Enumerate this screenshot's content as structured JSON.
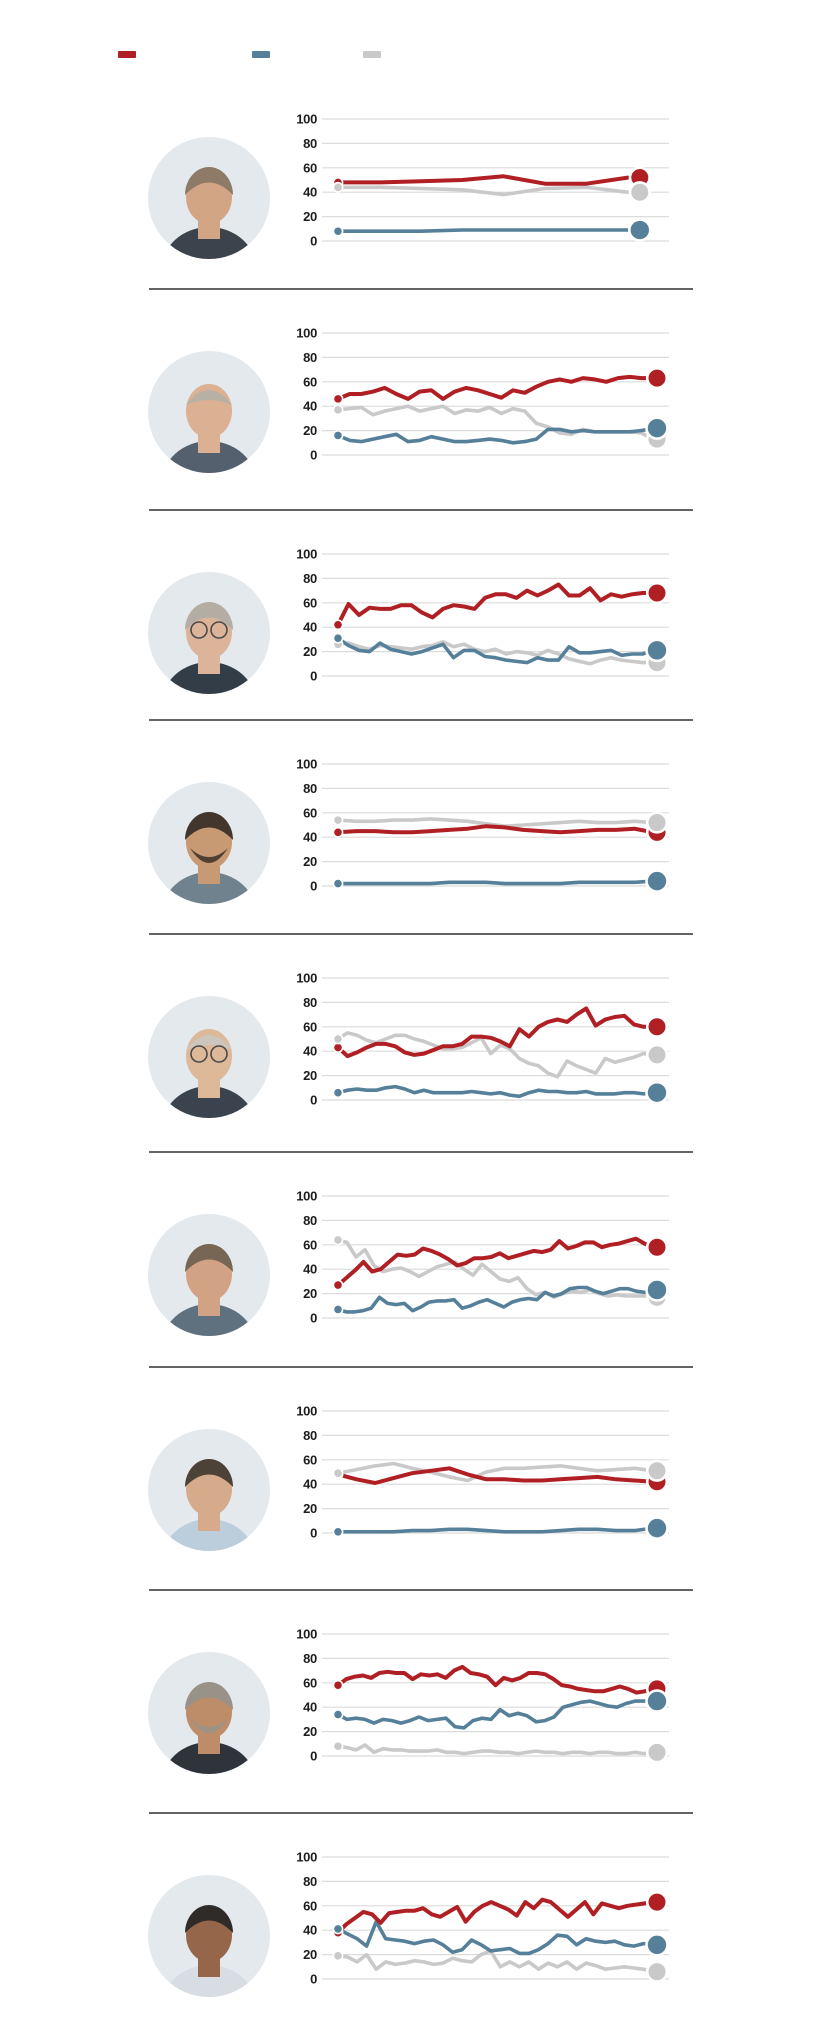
{
  "legend": {
    "items": [
      {
        "name": "red-series",
        "color": "#b01f23"
      },
      {
        "name": "blue-series",
        "color": "#56809a"
      },
      {
        "name": "gray-series",
        "color": "#c9c9c9"
      }
    ]
  },
  "colors": {
    "red": "#b01f23",
    "blue": "#56809a",
    "gray": "#c9c9c9",
    "grid": "#dcdcdc",
    "divider": "#646464",
    "tick_text": "#1d1d1d",
    "avatar_bg": "#e4e9ee"
  },
  "axis": {
    "yticks": [
      100,
      80,
      60,
      40,
      20,
      0
    ],
    "ylim": [
      0,
      100
    ]
  },
  "chart_data": [
    {
      "type": "line",
      "ylim": [
        0,
        100
      ],
      "yticks": [
        100,
        80,
        60,
        40,
        20,
        0
      ],
      "x_end_frac": 0.92,
      "series": [
        {
          "name": "red",
          "values": [
            48,
            48,
            49,
            50,
            53,
            47,
            47,
            52
          ]
        },
        {
          "name": "gray",
          "values": [
            44,
            44,
            43,
            42,
            38,
            43,
            44,
            40
          ]
        },
        {
          "name": "blue",
          "values": [
            8,
            8,
            8,
            9,
            9,
            9,
            9,
            9
          ]
        }
      ]
    },
    {
      "type": "line",
      "ylim": [
        0,
        100
      ],
      "yticks": [
        100,
        80,
        60,
        40,
        20,
        0
      ],
      "x_end_frac": 1,
      "series": [
        {
          "name": "red",
          "values": [
            46,
            50,
            50,
            52,
            55,
            50,
            46,
            52,
            53,
            46,
            52,
            55,
            53,
            50,
            47,
            53,
            51,
            56,
            60,
            62,
            60,
            63,
            62,
            60,
            63,
            64,
            63,
            63
          ]
        },
        {
          "name": "gray",
          "values": [
            37,
            38,
            39,
            33,
            36,
            38,
            40,
            36,
            38,
            40,
            34,
            37,
            36,
            39,
            34,
            38,
            36,
            26,
            23,
            18,
            17,
            21,
            19,
            19,
            19,
            19,
            18,
            13
          ]
        },
        {
          "name": "blue",
          "values": [
            16,
            12,
            11,
            13,
            15,
            17,
            11,
            12,
            15,
            13,
            11,
            11,
            12,
            13,
            12,
            10,
            11,
            13,
            21,
            21,
            19,
            20,
            19,
            19,
            19,
            19,
            20,
            22
          ]
        }
      ]
    },
    {
      "type": "line",
      "ylim": [
        0,
        100
      ],
      "yticks": [
        100,
        80,
        60,
        40,
        20,
        0
      ],
      "x_end_frac": 1,
      "series": [
        {
          "name": "red",
          "values": [
            42,
            59,
            50,
            56,
            55,
            55,
            58,
            58,
            52,
            48,
            55,
            58,
            57,
            55,
            64,
            67,
            67,
            64,
            70,
            66,
            70,
            75,
            66,
            66,
            72,
            62,
            67,
            65,
            67,
            68,
            68
          ]
        },
        {
          "name": "gray",
          "values": [
            26,
            27,
            24,
            22,
            25,
            24,
            23,
            22,
            24,
            25,
            28,
            24,
            26,
            22,
            20,
            22,
            18,
            20,
            19,
            17,
            21,
            18,
            14,
            12,
            10,
            13,
            15,
            13,
            12,
            11,
            11
          ]
        },
        {
          "name": "blue",
          "values": [
            31,
            25,
            21,
            20,
            27,
            22,
            20,
            18,
            20,
            23,
            26,
            15,
            21,
            21,
            16,
            15,
            13,
            12,
            11,
            15,
            13,
            13,
            24,
            19,
            19,
            20,
            21,
            17,
            18,
            18,
            21
          ]
        }
      ]
    },
    {
      "type": "line",
      "ylim": [
        0,
        100
      ],
      "yticks": [
        100,
        80,
        60,
        40,
        20,
        0
      ],
      "x_end_frac": 1,
      "series": [
        {
          "name": "red",
          "values": [
            44,
            45,
            45,
            44,
            44,
            45,
            46,
            47,
            49,
            48,
            46,
            45,
            44,
            45,
            46,
            46,
            47,
            44
          ]
        },
        {
          "name": "gray",
          "values": [
            54,
            53,
            53,
            54,
            54,
            55,
            54,
            53,
            51,
            49,
            50,
            51,
            52,
            53,
            52,
            52,
            53,
            52
          ]
        },
        {
          "name": "blue",
          "values": [
            2,
            2,
            2,
            2,
            2,
            2,
            3,
            3,
            3,
            2,
            2,
            2,
            2,
            3,
            3,
            3,
            3,
            4
          ]
        }
      ]
    },
    {
      "type": "line",
      "ylim": [
        0,
        100
      ],
      "yticks": [
        100,
        80,
        60,
        40,
        20,
        0
      ],
      "x_end_frac": 1,
      "series": [
        {
          "name": "red",
          "values": [
            43,
            36,
            39,
            43,
            46,
            46,
            44,
            39,
            37,
            38,
            41,
            44,
            44,
            46,
            52,
            52,
            51,
            48,
            44,
            58,
            52,
            60,
            64,
            66,
            64,
            70,
            75,
            61,
            66,
            68,
            69,
            62,
            60,
            60
          ]
        },
        {
          "name": "gray",
          "values": [
            50,
            55,
            53,
            49,
            47,
            50,
            53,
            53,
            50,
            48,
            45,
            42,
            42,
            43,
            47,
            51,
            38,
            45,
            42,
            34,
            30,
            28,
            22,
            19,
            32,
            28,
            25,
            22,
            34,
            31,
            33,
            35,
            38,
            37
          ]
        },
        {
          "name": "blue",
          "values": [
            6,
            8,
            9,
            8,
            8,
            10,
            11,
            9,
            6,
            8,
            6,
            6,
            6,
            6,
            7,
            6,
            5,
            6,
            4,
            3,
            6,
            8,
            7,
            7,
            6,
            6,
            7,
            5,
            5,
            5,
            6,
            6,
            5,
            6
          ]
        }
      ]
    },
    {
      "type": "line",
      "ylim": [
        0,
        100
      ],
      "yticks": [
        100,
        80,
        60,
        40,
        20,
        0
      ],
      "x_end_frac": 1,
      "series": [
        {
          "name": "red",
          "values": [
            27,
            33,
            39,
            46,
            38,
            40,
            46,
            52,
            51,
            52,
            57,
            55,
            52,
            48,
            43,
            45,
            49,
            49,
            50,
            53,
            49,
            51,
            53,
            55,
            54,
            56,
            63,
            57,
            59,
            62,
            62,
            58,
            60,
            61,
            63,
            65,
            61,
            58
          ]
        },
        {
          "name": "gray",
          "values": [
            64,
            62,
            50,
            56,
            43,
            38,
            40,
            41,
            38,
            34,
            38,
            42,
            44,
            46,
            40,
            35,
            44,
            38,
            32,
            30,
            33,
            24,
            19,
            21,
            17,
            20,
            22,
            21,
            23,
            20,
            18,
            19,
            18,
            18,
            18,
            17
          ]
        },
        {
          "name": "blue",
          "values": [
            7,
            5,
            5,
            6,
            8,
            17,
            12,
            11,
            12,
            6,
            9,
            13,
            14,
            14,
            15,
            8,
            10,
            13,
            15,
            12,
            9,
            13,
            15,
            16,
            15,
            21,
            18,
            20,
            24,
            25,
            25,
            22,
            20,
            22,
            24,
            24,
            22,
            21,
            23
          ]
        }
      ]
    },
    {
      "type": "line",
      "ylim": [
        0,
        100
      ],
      "yticks": [
        100,
        80,
        60,
        40,
        20,
        0
      ],
      "x_end_frac": 1,
      "series": [
        {
          "name": "red",
          "values": [
            48,
            44,
            41,
            45,
            49,
            51,
            53,
            48,
            44,
            44,
            43,
            43,
            44,
            45,
            46,
            44,
            43,
            42
          ]
        },
        {
          "name": "gray",
          "values": [
            49,
            52,
            55,
            57,
            53,
            50,
            46,
            43,
            50,
            53,
            53,
            54,
            55,
            53,
            51,
            52,
            53,
            51
          ]
        },
        {
          "name": "blue",
          "values": [
            1,
            1,
            1,
            1,
            2,
            2,
            3,
            3,
            2,
            1,
            1,
            1,
            2,
            3,
            3,
            2,
            2,
            4
          ]
        }
      ]
    },
    {
      "type": "line",
      "ylim": [
        0,
        100
      ],
      "yticks": [
        100,
        80,
        60,
        40,
        20,
        0
      ],
      "x_end_frac": 1,
      "series": [
        {
          "name": "red",
          "values": [
            58,
            63,
            65,
            66,
            64,
            68,
            69,
            68,
            68,
            63,
            67,
            66,
            67,
            64,
            70,
            73,
            68,
            67,
            65,
            58,
            64,
            62,
            64,
            68,
            68,
            67,
            63,
            58,
            57,
            55,
            54,
            53,
            53,
            55,
            57,
            55,
            52,
            53,
            55
          ]
        },
        {
          "name": "gray",
          "values": [
            8,
            7,
            5,
            9,
            3,
            6,
            5,
            5,
            4,
            4,
            4,
            5,
            3,
            3,
            2,
            3,
            4,
            4,
            3,
            3,
            2,
            3,
            4,
            3,
            3,
            2,
            3,
            3,
            2,
            3,
            3,
            2,
            2,
            3,
            2,
            3
          ]
        },
        {
          "name": "blue",
          "values": [
            34,
            30,
            31,
            30,
            27,
            30,
            29,
            27,
            29,
            32,
            29,
            30,
            31,
            24,
            23,
            29,
            31,
            30,
            38,
            33,
            35,
            33,
            28,
            29,
            32,
            40,
            42,
            44,
            45,
            43,
            41,
            40,
            43,
            45,
            45,
            45
          ]
        }
      ]
    },
    {
      "type": "line",
      "ylim": [
        0,
        100
      ],
      "yticks": [
        100,
        80,
        60,
        40,
        20,
        0
      ],
      "x_end_frac": 1,
      "series": [
        {
          "name": "red",
          "values": [
            38,
            45,
            50,
            55,
            53,
            46,
            54,
            55,
            56,
            56,
            58,
            53,
            51,
            55,
            59,
            47,
            55,
            60,
            63,
            60,
            57,
            52,
            63,
            58,
            65,
            63,
            57,
            51,
            57,
            63,
            53,
            62,
            60,
            58,
            60,
            61,
            62,
            63
          ]
        },
        {
          "name": "gray",
          "values": [
            19,
            18,
            14,
            20,
            8,
            14,
            12,
            13,
            15,
            14,
            12,
            13,
            17,
            15,
            14,
            20,
            23,
            10,
            14,
            10,
            14,
            8,
            13,
            10,
            14,
            8,
            13,
            11,
            8,
            9,
            10,
            9,
            8,
            6
          ]
        },
        {
          "name": "blue",
          "values": [
            41,
            37,
            33,
            27,
            47,
            33,
            32,
            31,
            29,
            31,
            32,
            28,
            22,
            24,
            32,
            28,
            23,
            24,
            25,
            21,
            21,
            24,
            29,
            36,
            35,
            28,
            33,
            31,
            30,
            31,
            28,
            27,
            29,
            28
          ]
        }
      ]
    }
  ],
  "rows": [
    {
      "avatar": {
        "hair": "#8d7b68",
        "skin": "#d2a584",
        "shirt": "#3c434c",
        "bald": false,
        "beard": false,
        "glasses": false
      }
    },
    {
      "avatar": {
        "hair": "#b8b0a4",
        "skin": "#dbb093",
        "shirt": "#55606e",
        "bald": true,
        "beard": false,
        "glasses": false
      }
    },
    {
      "avatar": {
        "hair": "#b3ada4",
        "skin": "#dcb49a",
        "shirt": "#333d47",
        "bald": false,
        "beard": false,
        "glasses": true
      }
    },
    {
      "avatar": {
        "hair": "#42362d",
        "skin": "#c89a74",
        "shirt": "#70828e",
        "bald": false,
        "beard": true,
        "glasses": false
      }
    },
    {
      "avatar": {
        "hair": "#cdc6bc",
        "skin": "#ddb899",
        "shirt": "#3a434e",
        "bald": true,
        "beard": false,
        "glasses": true
      }
    },
    {
      "avatar": {
        "hair": "#776653",
        "skin": "#d2a284",
        "shirt": "#5f707e",
        "bald": false,
        "beard": false,
        "glasses": false
      }
    },
    {
      "avatar": {
        "hair": "#4d4238",
        "skin": "#d5ab8b",
        "shirt": "#bccddb",
        "bald": false,
        "beard": false,
        "glasses": false
      }
    },
    {
      "avatar": {
        "hair": "#989289",
        "skin": "#bd8d69",
        "shirt": "#2f343a",
        "bald": false,
        "beard": true,
        "glasses": false
      }
    },
    {
      "avatar": {
        "hair": "#2f2b29",
        "skin": "#96664b",
        "shirt": "#d7dde2",
        "bald": false,
        "beard": false,
        "glasses": false
      }
    }
  ]
}
